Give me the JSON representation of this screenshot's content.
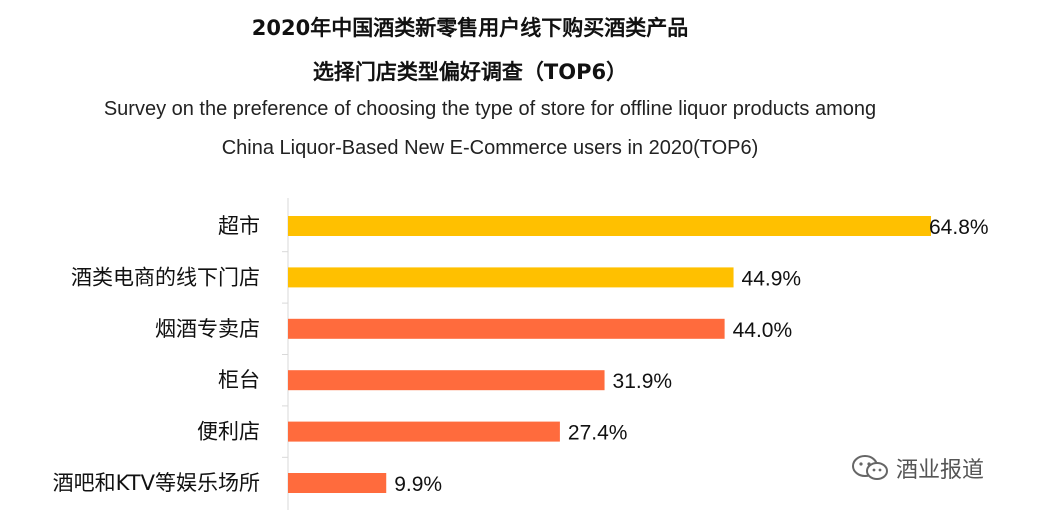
{
  "title": {
    "zh_line1": "2020年中国酒类新零售用户线下购买酒类产品",
    "zh_line2": "选择门店类型偏好调查（TOP6）",
    "en_line1": "Survey on the preference of choosing the type of store for offline liquor products among",
    "en_line2": "China Liquor-Based New E-Commerce users in 2020(TOP6)"
  },
  "watermark": {
    "text": "酒业报道",
    "icon": "wechat-icon"
  },
  "colors": {
    "top_bars": "#FFC000",
    "other_bars": "#FF6B3D",
    "axis": "#D9D9D9"
  },
  "chart_data": {
    "type": "bar",
    "orientation": "horizontal",
    "categories": [
      "超市",
      "酒类电商的线下门店",
      "烟酒专卖店",
      "柜台",
      "便利店",
      "酒吧和KTV等娱乐场所"
    ],
    "values": [
      64.8,
      44.9,
      44.0,
      31.9,
      27.4,
      9.9
    ],
    "value_labels": [
      "64.8%",
      "44.9%",
      "44.0%",
      "31.9%",
      "27.4%",
      "9.9%"
    ],
    "bar_colors": [
      "#FFC000",
      "#FFC000",
      "#FF6B3D",
      "#FF6B3D",
      "#FF6B3D",
      "#FF6B3D"
    ],
    "unit": "%",
    "xlim": [
      0,
      65
    ],
    "grid": false
  }
}
